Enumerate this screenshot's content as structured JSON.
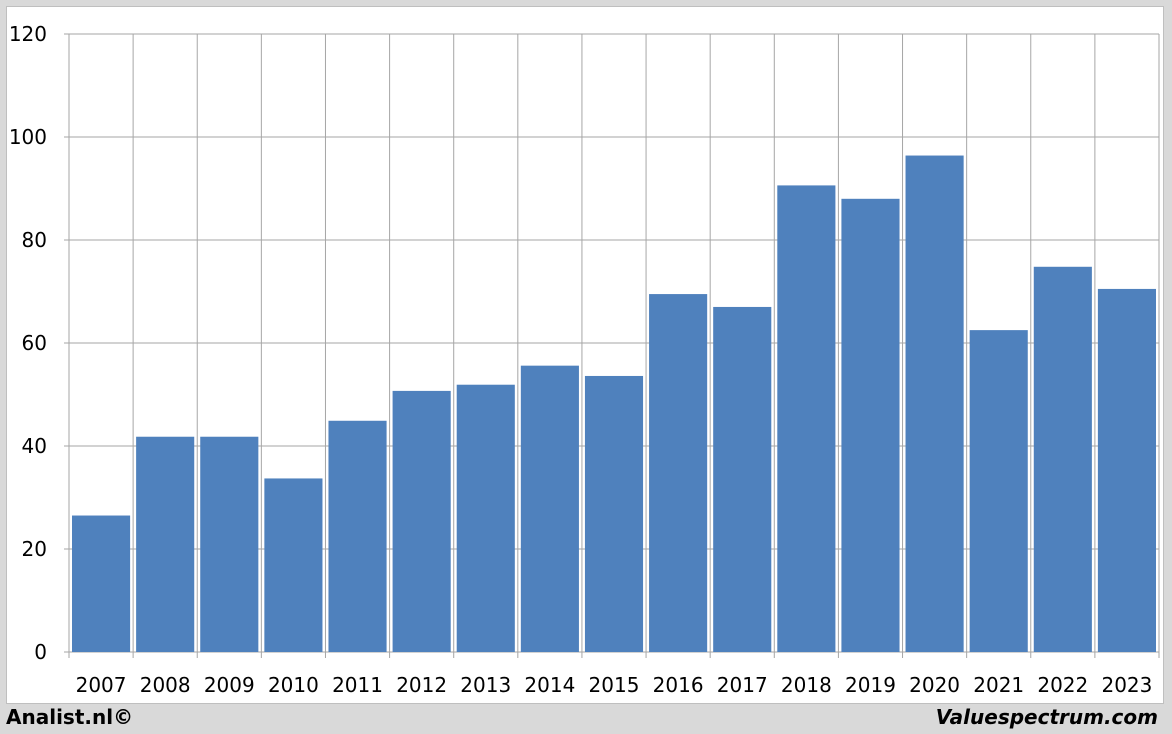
{
  "chart_data": {
    "type": "bar",
    "categories": [
      "2007",
      "2008",
      "2009",
      "2010",
      "2011",
      "2012",
      "2013",
      "2014",
      "2015",
      "2016",
      "2017",
      "2018",
      "2019",
      "2020",
      "2021",
      "2022",
      "2023"
    ],
    "values": [
      26.5,
      41.8,
      41.8,
      33.7,
      44.9,
      50.7,
      51.9,
      55.6,
      53.6,
      69.5,
      67.0,
      90.6,
      88.0,
      96.4,
      62.5,
      74.8,
      70.5
    ],
    "ylim": [
      0,
      120
    ],
    "yticks": [
      "0",
      "20",
      "40",
      "60",
      "80",
      "100",
      "120"
    ],
    "grid": true,
    "bar_color": "#4f81bd",
    "grid_color": "#a6a6a6"
  },
  "footer": {
    "left": "Analist.nl©",
    "right": "Valuespectrum.com"
  }
}
